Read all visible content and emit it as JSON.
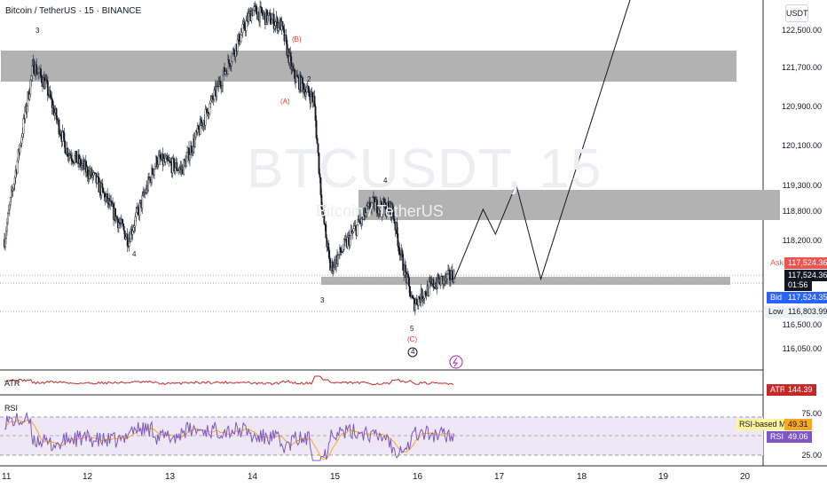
{
  "header": {
    "title": "Bitcoin / TetherUS · 15 · BINANCE",
    "watermark_symbol": "BTCUSDT, 15",
    "watermark_name": "Bitcoin / TetherUS"
  },
  "price_axis": {
    "unit": "USDT",
    "ticks": [
      "122,500.00",
      "121,700.00",
      "120,900.00",
      "120,100.00",
      "119,300.00",
      "118,800.00",
      "118,200.00",
      "116,500.00",
      "116,050.00"
    ]
  },
  "tags": {
    "ask_label": "Ask",
    "ask_value": "117,524.36",
    "last_value": "117,524.36",
    "countdown": "01:56",
    "bid_label": "Bid",
    "bid_value": "117,524.35",
    "low_label": "Low",
    "low_value": "116,803.99"
  },
  "atr": {
    "label": "ATR",
    "value": "144.39"
  },
  "rsi": {
    "label": "RSI",
    "levels": [
      "75.00",
      "25.00"
    ],
    "ma_label": "RSI-based MA",
    "ma_value": "49.31",
    "rsi_label": "RSI",
    "rsi_value": "49.06"
  },
  "time_axis": [
    "11",
    "12",
    "13",
    "14",
    "15",
    "16",
    "17",
    "18",
    "19",
    "20"
  ],
  "waves": {
    "w3a": "3",
    "w4a": "4",
    "wB": "(B)",
    "wA": "(A)",
    "w2": "2",
    "w3b": "3",
    "w4b": "4",
    "w5": "5",
    "wC": "(C)",
    "w4circ": "4"
  },
  "colors": {
    "zone": "#b2b2b2",
    "candle": "#131722",
    "atr": "#c62828",
    "rsi": "#7e57c2",
    "rsi_ma": "#f9a825",
    "ask": "#ef5350",
    "bid": "#2962ff"
  },
  "chart_data": {
    "type": "candlestick",
    "title": "Bitcoin / TetherUS · 15 · BINANCE",
    "xlabel": "",
    "ylabel": "USDT",
    "x_tick_labels": [
      "11",
      "12",
      "13",
      "14",
      "15",
      "16",
      "17",
      "18",
      "19",
      "20"
    ],
    "ylim": [
      115800,
      123100
    ],
    "key_levels": {
      "last": 117524.36,
      "ask": 117524.36,
      "bid": 117524.35,
      "low": 116803.99
    },
    "supply_zones": [
      [
        121400,
        122000
      ],
      [
        118650,
        119200
      ],
      [
        117450,
        117550
      ]
    ],
    "price_path": [
      [
        0,
        118300
      ],
      [
        0.35,
        121800
      ],
      [
        0.5,
        121400
      ],
      [
        0.75,
        120100
      ],
      [
        1.1,
        119500
      ],
      [
        1.5,
        118300
      ],
      [
        1.85,
        119900
      ],
      [
        2.15,
        119700
      ],
      [
        2.6,
        121400
      ],
      [
        3.0,
        122900
      ],
      [
        3.35,
        122600
      ],
      [
        3.5,
        121600
      ],
      [
        3.75,
        121100
      ],
      [
        3.85,
        118900
      ],
      [
        3.95,
        117700
      ],
      [
        4.25,
        118500
      ],
      [
        4.45,
        119000
      ],
      [
        4.7,
        118900
      ],
      [
        4.8,
        118000
      ],
      [
        4.95,
        117000
      ],
      [
        5.2,
        117400
      ],
      [
        5.35,
        117500
      ],
      [
        5.45,
        117600
      ]
    ],
    "projection": [
      [
        5.45,
        117500
      ],
      [
        5.8,
        118900
      ],
      [
        5.95,
        118400
      ],
      [
        6.2,
        119400
      ],
      [
        6.5,
        117500
      ],
      [
        7.6,
        123200
      ]
    ],
    "atr_value": 144.39,
    "rsi": {
      "value": 49.06,
      "ma": 49.31,
      "upper": 75,
      "lower": 25
    }
  }
}
